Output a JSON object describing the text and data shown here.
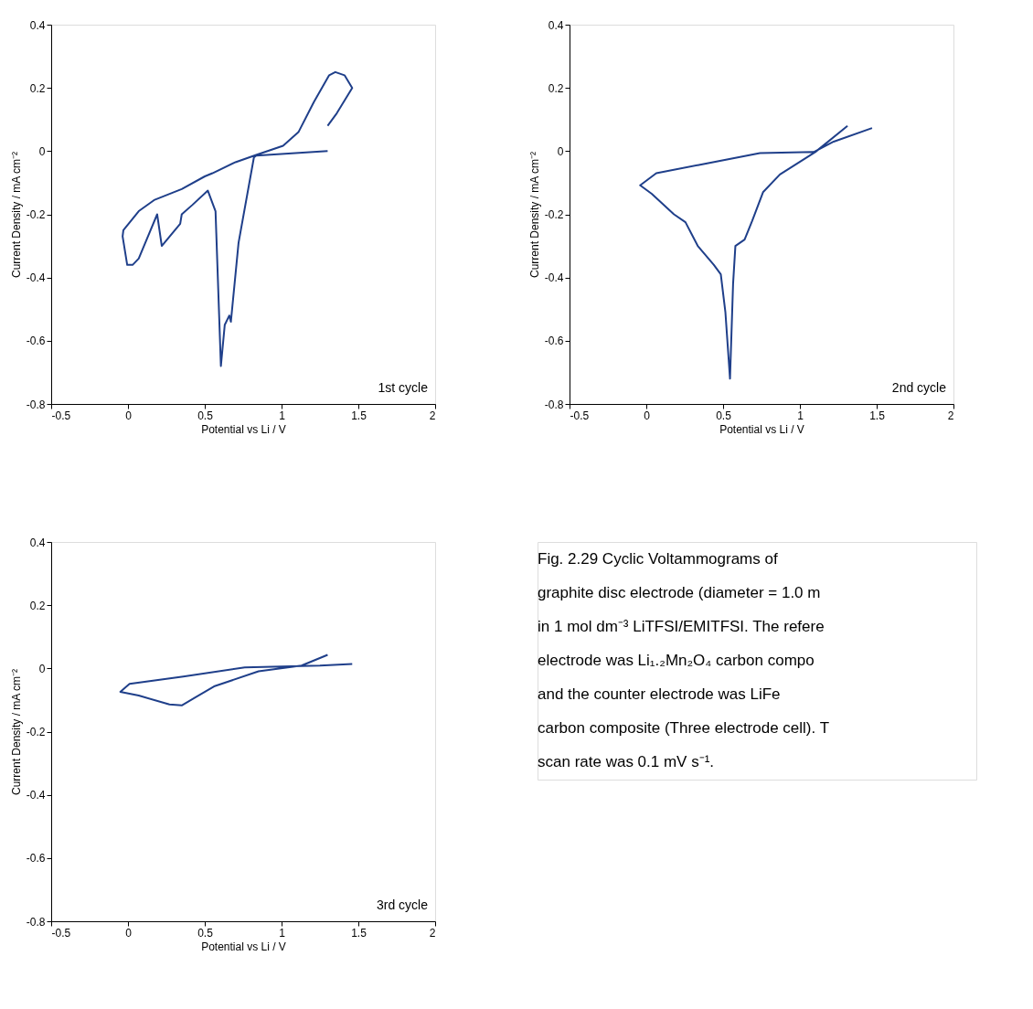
{
  "chart_data": [
    {
      "type": "line",
      "xlabel": "Potential vs Li / V",
      "ylabel": "Current Density / mA cm⁻²",
      "xlim": [
        -0.5,
        2
      ],
      "ylim": [
        -0.8,
        0.4
      ],
      "xticks": [
        -0.5,
        0,
        0.5,
        1,
        1.5,
        2
      ],
      "yticks": [
        -0.8,
        -0.6,
        -0.4,
        -0.2,
        0,
        0.2,
        0.4
      ],
      "annotations": [
        "1st cycle"
      ],
      "series": [
        {
          "color": "#1f3f8a",
          "x": [
            1.3,
            0.835,
            0.82,
            0.72,
            0.67,
            0.66,
            0.63,
            0.605,
            0.57,
            0.52,
            0.42,
            0.35,
            0.34,
            0.22,
            0.19,
            0.07,
            0.03,
            -0.005,
            -0.035,
            -0.03,
            0.07,
            0.17,
            0.35,
            0.5,
            0.55,
            0.7,
            0.835,
            1.01,
            1.11,
            1.21,
            1.31,
            1.35,
            1.41,
            1.46,
            1.36,
            1.3
          ],
          "values": [
            0.0,
            -0.014,
            -0.02,
            -0.29,
            -0.54,
            -0.52,
            -0.55,
            -0.68,
            -0.19,
            -0.125,
            -0.17,
            -0.2,
            -0.23,
            -0.3,
            -0.2,
            -0.34,
            -0.36,
            -0.36,
            -0.27,
            -0.25,
            -0.19,
            -0.155,
            -0.12,
            -0.08,
            -0.07,
            -0.035,
            -0.012,
            0.017,
            0.06,
            0.155,
            0.24,
            0.25,
            0.24,
            0.2,
            0.12,
            0.08
          ]
        }
      ]
    },
    {
      "type": "line",
      "xlabel": "Potential vs Li / V",
      "ylabel": "Current Density / mA cm⁻²",
      "xlim": [
        -0.5,
        2
      ],
      "ylim": [
        -0.8,
        0.4
      ],
      "xticks": [
        -0.5,
        0,
        0.5,
        1,
        1.5,
        2
      ],
      "yticks": [
        -0.8,
        -0.6,
        -0.4,
        -0.2,
        0,
        0.2,
        0.4
      ],
      "annotations": [
        "2nd cycle"
      ],
      "series": [
        {
          "color": "#1f3f8a",
          "x": [
            1.31,
            1.1,
            0.87,
            0.76,
            0.69,
            0.64,
            0.58,
            0.565,
            0.545,
            0.515,
            0.485,
            0.44,
            0.335,
            0.255,
            0.18,
            0.035,
            -0.04,
            0.065,
            0.35,
            0.74,
            1.09,
            1.22,
            1.47
          ],
          "values": [
            0.08,
            -0.003,
            -0.074,
            -0.13,
            -0.22,
            -0.28,
            -0.3,
            -0.42,
            -0.72,
            -0.51,
            -0.39,
            -0.36,
            -0.3,
            -0.225,
            -0.2,
            -0.135,
            -0.108,
            -0.07,
            -0.043,
            -0.006,
            -0.003,
            0.03,
            0.073
          ]
        }
      ]
    },
    {
      "type": "line",
      "xlabel": "Potential vs Li / V",
      "ylabel": "Current Density / mA cm⁻²",
      "xlim": [
        -0.5,
        2
      ],
      "ylim": [
        -0.8,
        0.4
      ],
      "xticks": [
        -0.5,
        0,
        0.5,
        1,
        1.5,
        2
      ],
      "yticks": [
        -0.8,
        -0.6,
        -0.4,
        -0.2,
        0,
        0.2,
        0.4
      ],
      "annotations": [
        "3rd cycle"
      ],
      "series": [
        {
          "color": "#1f3f8a",
          "x": [
            1.3,
            1.13,
            0.85,
            0.56,
            0.35,
            0.27,
            0.07,
            -0.05,
            0.01,
            0.36,
            0.76,
            1.25,
            1.46
          ],
          "values": [
            0.043,
            0.009,
            -0.009,
            -0.057,
            -0.117,
            -0.114,
            -0.086,
            -0.074,
            -0.049,
            -0.026,
            0.003,
            0.009,
            0.014
          ]
        }
      ]
    },
    {
      "type": "other",
      "annotations": [
        "Fig. 2.29 Cyclic Voltammograms of",
        "graphite disc electrode (diameter = 1.0 m",
        "in 1 mol dm⁻³ LiTFSI/EMITFSI. The refere",
        "electrode was Li₁.₂Mn₂O₄ carbon compo",
        "and the counter electrode was LiFe",
        "carbon composite (Three electrode cell). T",
        "scan rate was 0.1 mV s⁻¹."
      ]
    }
  ]
}
